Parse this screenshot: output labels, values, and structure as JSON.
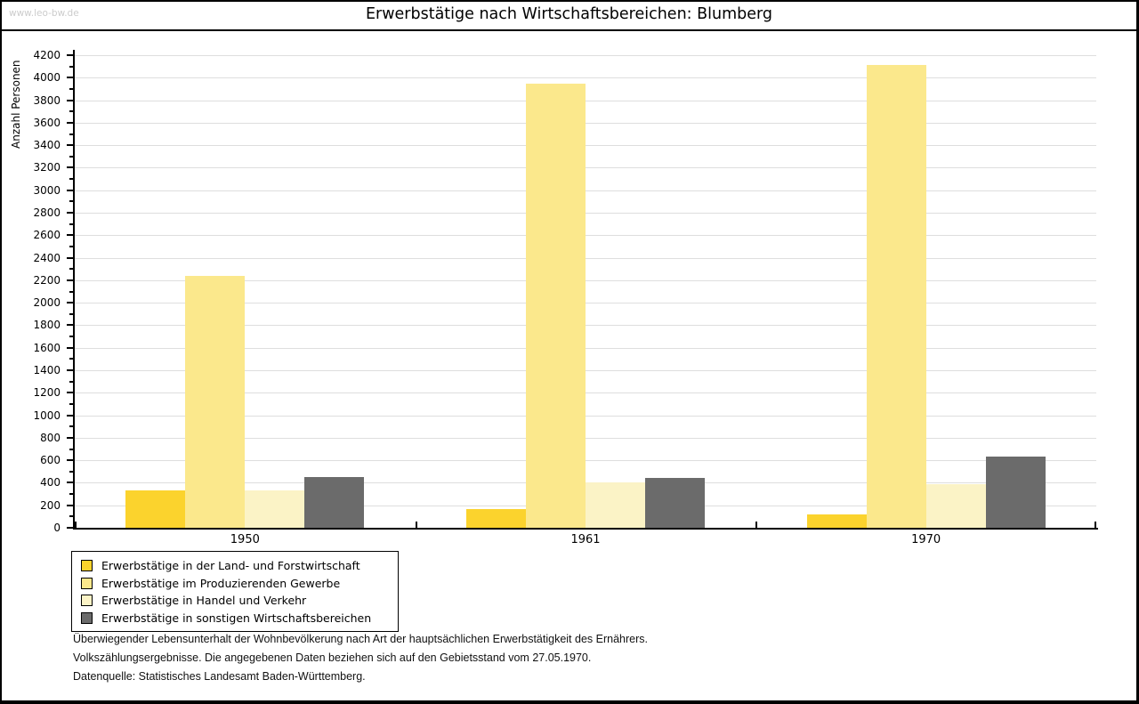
{
  "watermark": "www.leo-bw.de",
  "title": "Erwerbstätige nach Wirtschaftsbereichen: Blumberg",
  "footer": {
    "line1": "Überwiegender Lebensunterhalt der Wohnbevölkerung nach Art der hauptsächlichen Erwerbstätigkeit des Ernährers.",
    "line2": "Volkszählungsergebnisse. Die angegebenen Daten beziehen sich auf den Gebietsstand vom 27.05.1970.",
    "source": "Datenquelle: Statistisches Landesamt Baden-Württemberg."
  },
  "colors": {
    "land_forstwirtschaft": "#fbd32d",
    "produzierendes_gewerbe": "#fbe88c",
    "handel_verkehr": "#fbf3c6",
    "sonstige_bereiche": "#6b6b6b",
    "gridline": "#dedede",
    "axis": "#000000",
    "watermark": "#cccccc"
  },
  "chart_data": {
    "type": "bar",
    "title": "Erwerbstätige nach Wirtschaftsbereichen: Blumberg",
    "xlabel": "",
    "ylabel": "Anzahl Personen",
    "categories": [
      "1950",
      "1961",
      "1970"
    ],
    "series": [
      {
        "name": "Erwerbstätige in der Land- und Forstwirtschaft",
        "color": "#fbd32d",
        "values": [
          330,
          170,
          120
        ]
      },
      {
        "name": "Erwerbstätige im Produzierenden Gewerbe",
        "color": "#fbe88c",
        "values": [
          2240,
          3950,
          4110
        ]
      },
      {
        "name": "Erwerbstätige in Handel und Verkehr",
        "color": "#fbf3c6",
        "values": [
          330,
          400,
          390
        ]
      },
      {
        "name": "Erwerbstätige in sonstigen Wirtschaftsbereichen",
        "color": "#6b6b6b",
        "values": [
          450,
          440,
          630
        ]
      }
    ],
    "ylim": [
      0,
      4200
    ],
    "ytick_step": 200,
    "ytick_minor_step": 100,
    "grid": true,
    "legend_position": "bottom-left"
  }
}
